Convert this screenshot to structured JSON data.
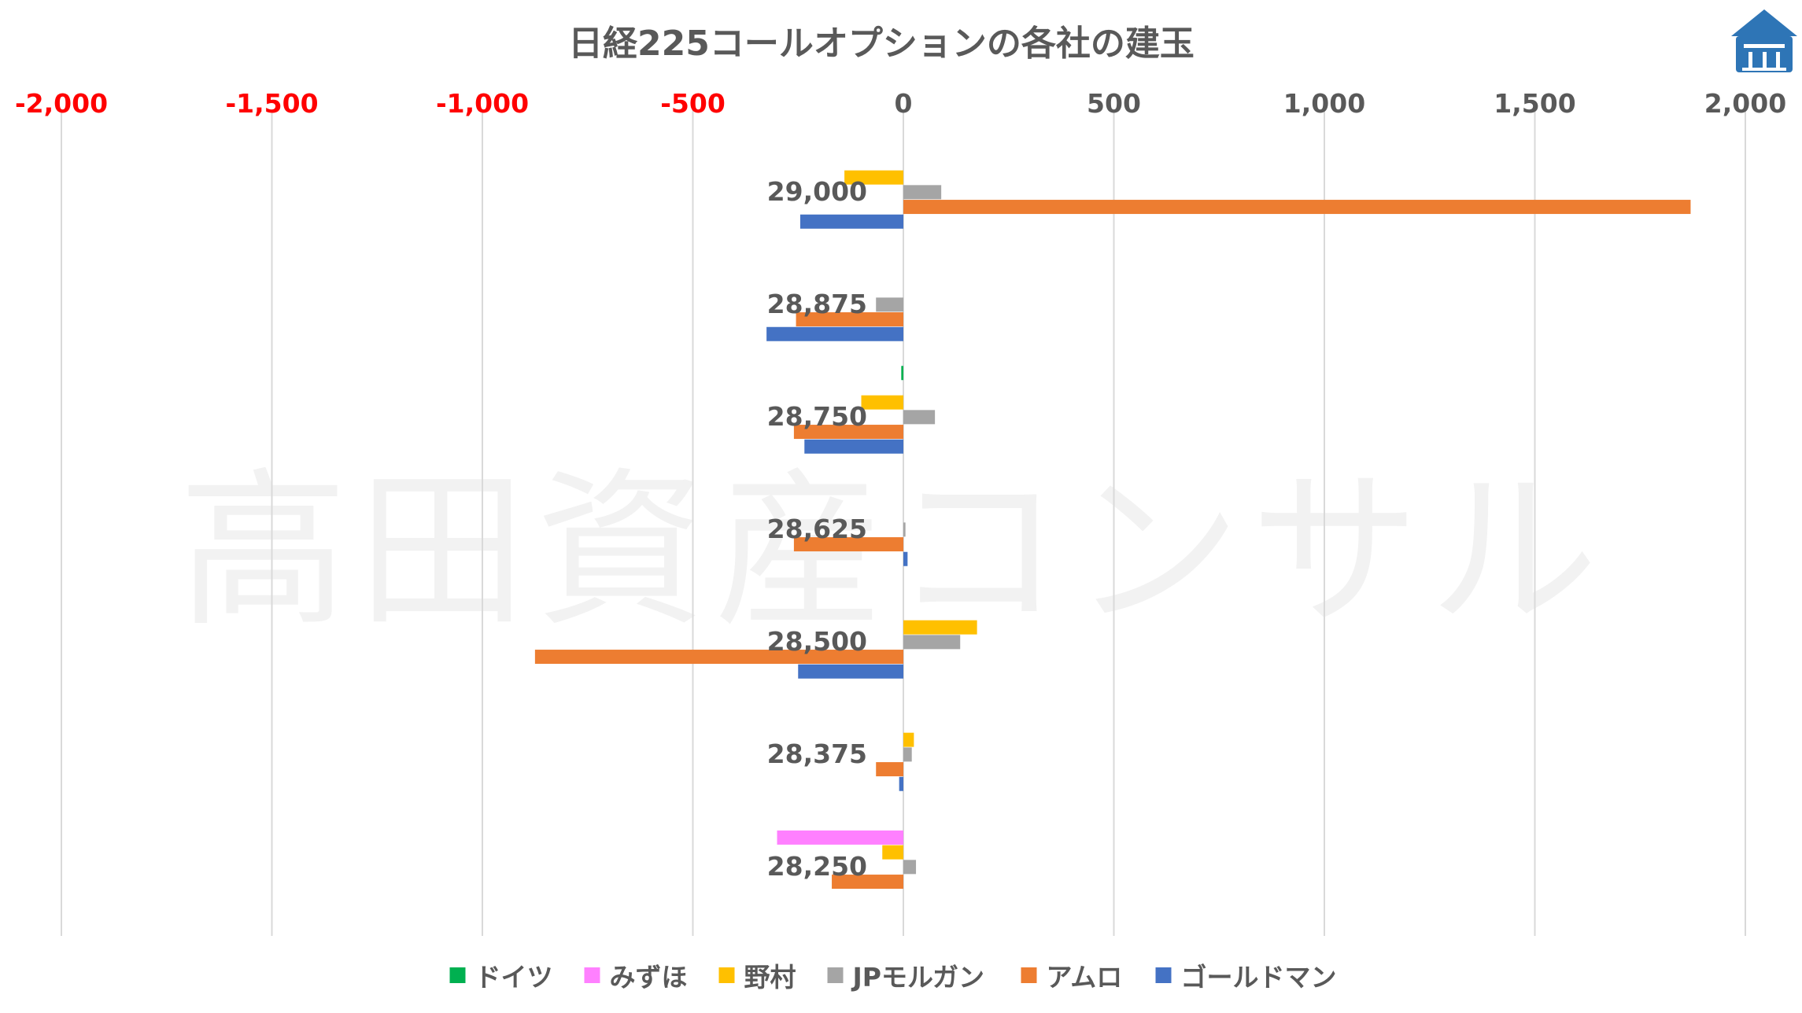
{
  "watermark": "高田資産コンサル",
  "logo": {
    "name": "house-logo-icon",
    "color": "#2e75b6"
  },
  "chart_data": {
    "type": "bar",
    "orientation": "horizontal",
    "title": "日経225コールオプションの各社の建玉",
    "xlabel": "",
    "ylabel": "",
    "xlim": [
      -2000,
      2000
    ],
    "xticks": [
      -2000,
      -1500,
      -1000,
      -500,
      0,
      500,
      1000,
      1500,
      2000
    ],
    "xtick_labels": [
      "-2,000",
      "-1,500",
      "-1,000",
      "-500",
      "0",
      "500",
      "1,000",
      "1,500",
      "2,000"
    ],
    "negative_tick_color": "#ff0000",
    "xaxis_position": "top",
    "grid": "vertical",
    "legend_position": "bottom",
    "categories": [
      "29,000",
      "28,875",
      "28,750",
      "28,625",
      "28,500",
      "28,375",
      "28,250"
    ],
    "series": [
      {
        "name": "ドイツ",
        "color": "#00b050",
        "values": [
          0,
          0,
          -5,
          0,
          0,
          0,
          0
        ]
      },
      {
        "name": "みずほ",
        "color": "#ff80ff",
        "values": [
          0,
          0,
          0,
          0,
          0,
          0,
          -300
        ]
      },
      {
        "name": "野村",
        "color": "#ffc000",
        "values": [
          -140,
          0,
          -100,
          0,
          175,
          25,
          -50
        ]
      },
      {
        "name": "JPモルガン",
        "color": "#a5a5a5",
        "values": [
          90,
          -65,
          75,
          5,
          135,
          20,
          30
        ]
      },
      {
        "name": "アムロ",
        "color": "#ed7d31",
        "values": [
          1870,
          -255,
          -260,
          -260,
          -875,
          -65,
          -170
        ]
      },
      {
        "name": "ゴールドマン",
        "color": "#4472c4",
        "values": [
          -245,
          -325,
          -235,
          10,
          -250,
          -10,
          0
        ]
      }
    ]
  }
}
